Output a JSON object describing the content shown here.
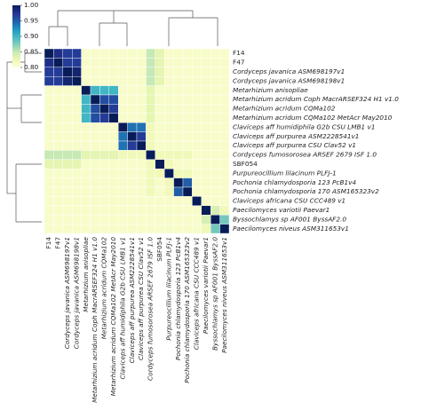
{
  "chart_data": {
    "type": "heatmap",
    "colormap": "YlGnBu",
    "labels": [
      "F14",
      "F47",
      "Cordyceps javanica ASM698197v1",
      "Cordyceps javanica ASM698198v1",
      "Metarhizium anisopliae",
      "Metarhizium acridum Coph MacrARSEF324 H1 v1.0",
      "Metarhizium acridum CQMa102",
      "Metarhizium acridum CQMa102 MetAcr May2010",
      "Claviceps aff humidiphila G2b CSU LMB1 v1",
      "Claviceps aff purpurea ASM2228541v1",
      "Claviceps aff purpurea CSU Clav52 v1",
      "Cordyceps fumosorosea ARSEF 2679 ISF 1.0",
      "SBF054",
      "Purpureocillium lilacinum PLFJ-1",
      "Pochonia chlamydosporia 123 PcB1v4",
      "Pochonia chlamydosporia 170 ASM165323v2",
      "Claviceps africana CSU CCC489 v1",
      "Paecilomyces variotii Paevar1",
      "Byssochlamys sp AF001 ByssAF2.0",
      "Paecilomyces niveus ASM311653v1"
    ],
    "values": [
      [
        1.0,
        0.98,
        0.97,
        0.97,
        0.81,
        0.81,
        0.81,
        0.81,
        0.81,
        0.81,
        0.81,
        0.85,
        0.83,
        0.81,
        0.81,
        0.81,
        0.81,
        0.81,
        0.81,
        0.81
      ],
      [
        0.98,
        1.0,
        0.97,
        0.97,
        0.81,
        0.81,
        0.81,
        0.81,
        0.81,
        0.81,
        0.81,
        0.85,
        0.83,
        0.81,
        0.81,
        0.81,
        0.81,
        0.81,
        0.81,
        0.81
      ],
      [
        0.97,
        0.97,
        1.0,
        0.99,
        0.81,
        0.81,
        0.81,
        0.81,
        0.81,
        0.81,
        0.81,
        0.85,
        0.83,
        0.81,
        0.81,
        0.81,
        0.81,
        0.81,
        0.81,
        0.81
      ],
      [
        0.97,
        0.97,
        0.99,
        1.0,
        0.81,
        0.81,
        0.81,
        0.81,
        0.81,
        0.81,
        0.81,
        0.85,
        0.83,
        0.81,
        0.81,
        0.81,
        0.81,
        0.81,
        0.81,
        0.81
      ],
      [
        0.81,
        0.81,
        0.81,
        0.81,
        1.0,
        0.9,
        0.9,
        0.9,
        0.81,
        0.81,
        0.81,
        0.83,
        0.81,
        0.81,
        0.81,
        0.81,
        0.81,
        0.81,
        0.81,
        0.81
      ],
      [
        0.81,
        0.81,
        0.81,
        0.81,
        0.9,
        1.0,
        0.96,
        0.96,
        0.81,
        0.81,
        0.81,
        0.83,
        0.81,
        0.81,
        0.81,
        0.81,
        0.81,
        0.81,
        0.81,
        0.81
      ],
      [
        0.81,
        0.81,
        0.81,
        0.81,
        0.9,
        0.96,
        1.0,
        0.97,
        0.81,
        0.81,
        0.81,
        0.83,
        0.81,
        0.81,
        0.81,
        0.81,
        0.81,
        0.81,
        0.81,
        0.81
      ],
      [
        0.81,
        0.81,
        0.81,
        0.81,
        0.9,
        0.96,
        0.97,
        1.0,
        0.81,
        0.81,
        0.81,
        0.83,
        0.81,
        0.81,
        0.81,
        0.81,
        0.81,
        0.81,
        0.81,
        0.81
      ],
      [
        0.81,
        0.81,
        0.81,
        0.81,
        0.81,
        0.81,
        0.81,
        0.81,
        1.0,
        0.94,
        0.94,
        0.82,
        0.81,
        0.81,
        0.81,
        0.81,
        0.81,
        0.81,
        0.81,
        0.81
      ],
      [
        0.81,
        0.81,
        0.81,
        0.81,
        0.81,
        0.81,
        0.81,
        0.81,
        0.94,
        1.0,
        0.97,
        0.82,
        0.81,
        0.81,
        0.81,
        0.81,
        0.81,
        0.81,
        0.81,
        0.81
      ],
      [
        0.81,
        0.81,
        0.81,
        0.81,
        0.81,
        0.81,
        0.81,
        0.81,
        0.94,
        0.97,
        1.0,
        0.82,
        0.81,
        0.81,
        0.81,
        0.81,
        0.81,
        0.81,
        0.81,
        0.81
      ],
      [
        0.85,
        0.85,
        0.85,
        0.85,
        0.83,
        0.83,
        0.83,
        0.83,
        0.82,
        0.82,
        0.82,
        1.0,
        0.82,
        0.82,
        0.82,
        0.82,
        0.81,
        0.81,
        0.81,
        0.81
      ],
      [
        0.83,
        0.83,
        0.83,
        0.83,
        0.81,
        0.81,
        0.81,
        0.81,
        0.81,
        0.81,
        0.81,
        0.82,
        1.0,
        0.82,
        0.81,
        0.81,
        0.81,
        0.81,
        0.81,
        0.81
      ],
      [
        0.81,
        0.81,
        0.81,
        0.81,
        0.81,
        0.81,
        0.81,
        0.81,
        0.81,
        0.81,
        0.81,
        0.82,
        0.82,
        1.0,
        0.82,
        0.82,
        0.81,
        0.81,
        0.81,
        0.81
      ],
      [
        0.81,
        0.81,
        0.81,
        0.81,
        0.81,
        0.81,
        0.81,
        0.81,
        0.81,
        0.81,
        0.81,
        0.82,
        0.81,
        0.82,
        1.0,
        0.95,
        0.81,
        0.81,
        0.81,
        0.81
      ],
      [
        0.81,
        0.81,
        0.81,
        0.81,
        0.81,
        0.81,
        0.81,
        0.81,
        0.81,
        0.81,
        0.81,
        0.82,
        0.81,
        0.82,
        0.95,
        1.0,
        0.81,
        0.81,
        0.81,
        0.81
      ],
      [
        0.81,
        0.81,
        0.81,
        0.81,
        0.81,
        0.81,
        0.81,
        0.81,
        0.81,
        0.81,
        0.81,
        0.81,
        0.81,
        0.81,
        0.81,
        0.81,
        1.0,
        0.81,
        0.81,
        0.81
      ],
      [
        0.81,
        0.81,
        0.81,
        0.81,
        0.81,
        0.81,
        0.81,
        0.81,
        0.81,
        0.81,
        0.81,
        0.81,
        0.81,
        0.81,
        0.81,
        0.81,
        0.81,
        1.0,
        0.84,
        0.82
      ],
      [
        0.81,
        0.81,
        0.81,
        0.81,
        0.81,
        0.81,
        0.81,
        0.81,
        0.81,
        0.81,
        0.81,
        0.81,
        0.81,
        0.81,
        0.81,
        0.81,
        0.81,
        0.84,
        1.0,
        0.88
      ],
      [
        0.81,
        0.81,
        0.81,
        0.81,
        0.81,
        0.81,
        0.81,
        0.81,
        0.81,
        0.81,
        0.81,
        0.81,
        0.81,
        0.81,
        0.81,
        0.81,
        0.81,
        0.82,
        0.88,
        1.0
      ]
    ],
    "zlim": [
      0.8,
      1.0
    ],
    "zticks": [
      {
        "value": 0.8,
        "label": "0.80"
      },
      {
        "value": 0.85,
        "label": "0.85"
      },
      {
        "value": 0.9,
        "label": "0.90"
      },
      {
        "value": 0.95,
        "label": "0.95"
      },
      {
        "value": 1.0,
        "label": "1.00"
      }
    ]
  }
}
